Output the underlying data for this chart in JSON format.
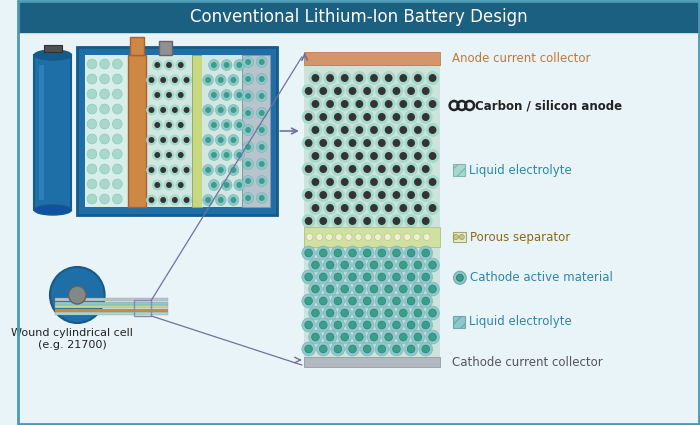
{
  "title": "Conventional Lithium-Ion Battery Design",
  "title_bg": "#1b6080",
  "title_color": "#ffffff",
  "bg_color": "#e8f4f8",
  "border_color": "#4a9ab5",
  "anode_collector_color": "#d4956a",
  "cathode_collector_color": "#b0b8c0",
  "separator_color": "#c8d890",
  "anode_pattern_bg": "#c5ddd8",
  "cathode_pattern_bg": "#c5ddd8",
  "carbon_dark": "#333333",
  "carbon_light": "#a8d8cc",
  "cathode_teal": "#3a9e88",
  "cathode_ring": "#8ec8cc",
  "blue_body": "#1e6fa8",
  "blue_dark": "#145a8a",
  "blue_mid": "#2280be",
  "orange_col": "#cc8844",
  "gray_col": "#909090",
  "arrow_color": "#7070a0",
  "labels": {
    "anode_collector": "Anode current collector",
    "carbon_anode": "Carbon / silicon anode",
    "liquid_electrolyte1": "Liquid electrolyte",
    "porous_separator": "Porous separator",
    "cathode_active": "Cathode active material",
    "liquid_electrolyte2": "Liquid electrolyte",
    "cathode_collector": "Cathode current collector"
  },
  "label_colors": {
    "anode_collector": "#c07838",
    "carbon_anode": "#222222",
    "liquid_electrolyte": "#2e86ab",
    "porous_separator": "#8b6914",
    "cathode_active": "#2e86ab",
    "cathode_collector": "#555555"
  },
  "wound_label": "Wound cylindrical cell\n(e.g. 21700)"
}
